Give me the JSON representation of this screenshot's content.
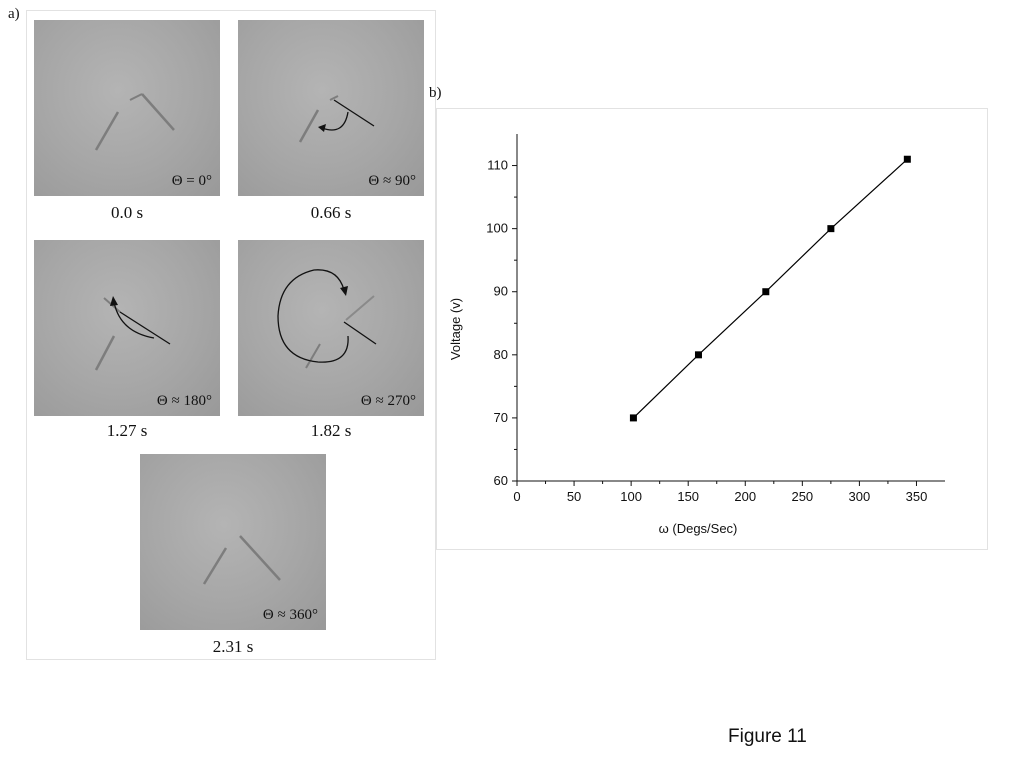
{
  "panel_a": {
    "label": "a)",
    "frames": [
      {
        "angle": "Θ = 0°",
        "time": "0.0 s"
      },
      {
        "angle": "Θ ≈ 90°",
        "time": "0.66 s"
      },
      {
        "angle": "Θ ≈ 180°",
        "time": "1.27 s"
      },
      {
        "angle": "Θ ≈ 270°",
        "time": "1.82 s"
      },
      {
        "angle": "Θ ≈ 360°",
        "time": "2.31 s"
      }
    ]
  },
  "panel_b": {
    "label": "b)"
  },
  "chart_data": {
    "type": "line",
    "xlabel": "ω (Degs/Sec)",
    "ylabel": "Voltage (v)",
    "xlim": [
      0,
      375
    ],
    "ylim": [
      60,
      115
    ],
    "xticks": [
      0,
      50,
      100,
      150,
      200,
      250,
      300,
      350
    ],
    "yticks": [
      60,
      70,
      80,
      90,
      100,
      110
    ],
    "grid": false,
    "series": [
      {
        "x": [
          102,
          159,
          218,
          275,
          342
        ],
        "y": [
          70,
          80,
          90,
          100,
          111
        ],
        "marker": "square",
        "color": "#000000"
      }
    ]
  },
  "caption": "Figure 11"
}
